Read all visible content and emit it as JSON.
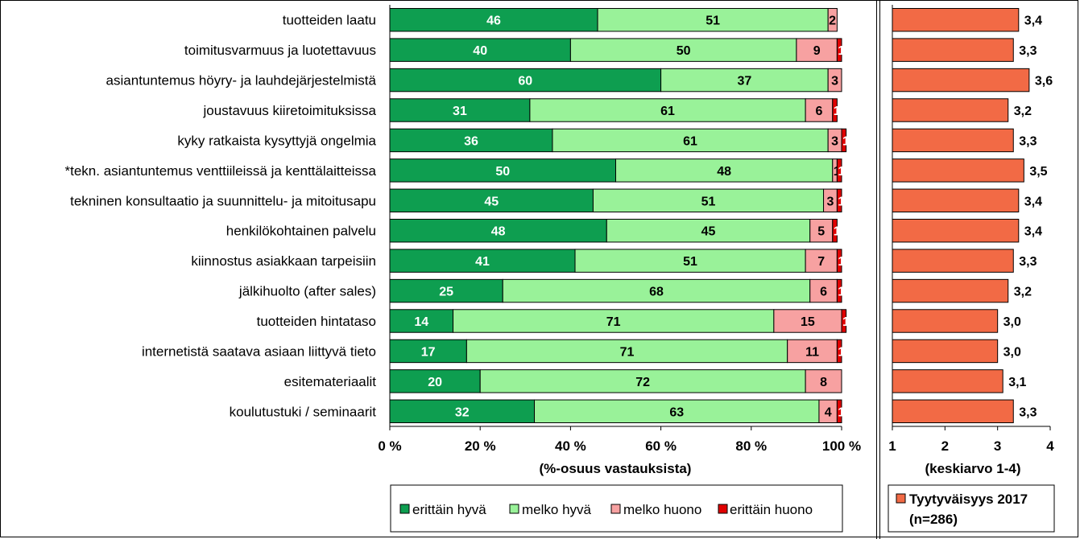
{
  "chart_data": [
    {
      "type": "bar",
      "orientation": "horizontal",
      "stacked": true,
      "categories": [
        "tuotteiden laatu",
        "toimitusvarmuus ja luotettavuus",
        "asiantuntemus höyry- ja lauhdejärjestelmistä",
        "joustavuus kiiretoimituksissa",
        "kyky ratkaista kysyttyjä ongelmia",
        "*tekn. asiantuntemus venttiileissä ja kenttälaitteissa",
        "tekninen konsultaatio ja suunnittelu- ja mitoitusapu",
        "henkilökohtainen palvelu",
        "kiinnostus asiakkaan tarpeisiin",
        "jälkihuolto (after sales)",
        "tuotteiden hintataso",
        "internetistä saatava asiaan liittyvä tieto",
        "esitemateriaalit",
        "koulutustuki / seminaarit"
      ],
      "series": [
        {
          "name": "erittäin hyvä",
          "color": "#0e9e50",
          "label_color": "#ffffff",
          "values": [
            46,
            40,
            60,
            31,
            36,
            50,
            45,
            48,
            41,
            25,
            14,
            17,
            20,
            32
          ]
        },
        {
          "name": "melko hyvä",
          "color": "#99f299",
          "label_color": "#000000",
          "values": [
            51,
            50,
            37,
            61,
            61,
            48,
            51,
            45,
            51,
            68,
            71,
            71,
            72,
            63
          ]
        },
        {
          "name": "melko huono",
          "color": "#f7a1a1",
          "label_color": "#000000",
          "values": [
            2,
            9,
            3,
            6,
            3,
            1,
            3,
            5,
            7,
            6,
            15,
            11,
            8,
            4
          ]
        },
        {
          "name": "erittäin huono",
          "color": "#e00000",
          "label_color": "#ffffff",
          "values": [
            0,
            1,
            0,
            1,
            1,
            1,
            1,
            1,
            1,
            1,
            1,
            1,
            0,
            1
          ]
        }
      ],
      "xlim": [
        0,
        100
      ],
      "xticks": [
        "0 %",
        "20 %",
        "40 %",
        "60 %",
        "80 %",
        "100 %"
      ],
      "xlabel": "(%-osuus  vastauksista)",
      "legend_position": "bottom"
    },
    {
      "type": "bar",
      "orientation": "horizontal",
      "series": [
        {
          "name": "Tyytyväisyys 2017",
          "name_line2": "(n=286)",
          "color": "#f26a45",
          "values": [
            3.4,
            3.3,
            3.6,
            3.2,
            3.3,
            3.5,
            3.4,
            3.4,
            3.3,
            3.2,
            3.0,
            3.0,
            3.1,
            3.3
          ]
        }
      ],
      "value_labels": [
        "3,4",
        "3,3",
        "3,6",
        "3,2",
        "3,3",
        "3,5",
        "3,4",
        "3,4",
        "3,3",
        "3,2",
        "3,0",
        "3,0",
        "3,1",
        "3,3"
      ],
      "xlim": [
        1,
        4
      ],
      "xticks": [
        "1",
        "2",
        "3",
        "4"
      ],
      "xlabel": "(keskiarvo 1-4)",
      "legend_position": "bottom"
    }
  ]
}
